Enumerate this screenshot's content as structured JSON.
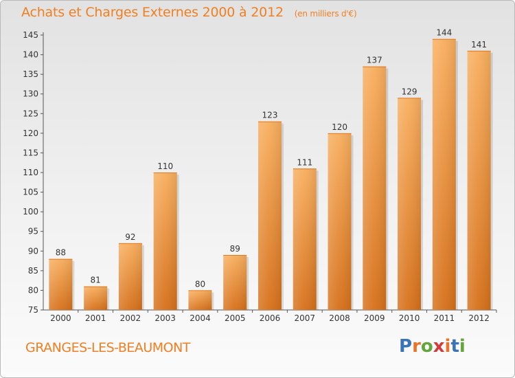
{
  "title": "Achats et Charges Externes 2000 à 2012",
  "unit": "(en milliers d'€)",
  "commune": "GRANGES-LES-BEAUMONT",
  "logo": {
    "text": "Proxiti",
    "letters": [
      "P",
      "r",
      "o",
      "x",
      "i",
      "t",
      "i"
    ],
    "colors": [
      "#3a73b8",
      "#e8742a",
      "#63a63c",
      "#d03c3c",
      "#e8742a",
      "#3a73b8",
      "#63a63c"
    ]
  },
  "colors": {
    "accent": "#f07f22",
    "bar_light": "#f7a95a",
    "bar_dark": "#d9731a"
  },
  "chart_data": {
    "type": "bar",
    "categories": [
      "2000",
      "2001",
      "2002",
      "2003",
      "2004",
      "2005",
      "2006",
      "2007",
      "2008",
      "2009",
      "2010",
      "2011",
      "2012"
    ],
    "values": [
      88,
      81,
      92,
      110,
      80,
      89,
      123,
      111,
      120,
      137,
      129,
      144,
      141
    ],
    "value_labels": [
      "88",
      "81",
      "92",
      "110",
      "80",
      "89",
      "123",
      "111",
      "120",
      "137",
      "129",
      "144",
      "141"
    ],
    "yticks": [
      "75",
      "80",
      "85",
      "90",
      "95",
      "100",
      "105",
      "110",
      "115",
      "120",
      "125",
      "130",
      "135",
      "140",
      "145"
    ],
    "ylim": [
      75,
      145
    ],
    "grid": false,
    "legend": "none"
  }
}
